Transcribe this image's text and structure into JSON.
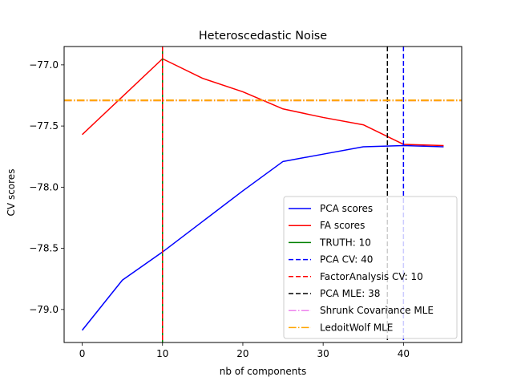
{
  "chart_data": {
    "type": "line",
    "title": "Heteroscedastic Noise",
    "xlabel": "nb of components",
    "ylabel": "CV scores",
    "xlim": [
      -2.25,
      47.25
    ],
    "ylim": [
      -79.27,
      -76.85
    ],
    "xticks": [
      0,
      10,
      20,
      30,
      40
    ],
    "xtick_labels": [
      "0",
      "10",
      "20",
      "30",
      "40"
    ],
    "yticks": [
      -79.0,
      -78.5,
      -78.0,
      -77.5,
      -77.0
    ],
    "ytick_labels": [
      "−79.0",
      "−78.5",
      "−78.0",
      "−77.5",
      "−77.0"
    ],
    "grid": false,
    "legend_position": "lower-right",
    "series": [
      {
        "name": "PCA scores",
        "color": "#0000ff",
        "style": "solid",
        "x": [
          0,
          5,
          10,
          15,
          20,
          25,
          30,
          35,
          40,
          45
        ],
        "y": [
          -79.17,
          -78.76,
          -78.53,
          -78.28,
          -78.03,
          -77.79,
          -77.73,
          -77.67,
          -77.66,
          -77.67
        ]
      },
      {
        "name": "FA scores",
        "color": "#ff0000",
        "style": "solid",
        "x": [
          0,
          5,
          10,
          15,
          20,
          25,
          30,
          35,
          40,
          45
        ],
        "y": [
          -77.57,
          -77.26,
          -76.95,
          -77.11,
          -77.22,
          -77.36,
          -77.43,
          -77.49,
          -77.65,
          -77.66
        ]
      }
    ],
    "vlines": [
      {
        "name": "TRUTH: 10",
        "x": 10,
        "color": "#008000",
        "style": "solid"
      },
      {
        "name": "PCA CV: 40",
        "x": 40,
        "color": "#0000ff",
        "style": "dashed"
      },
      {
        "name": "FactorAnalysis CV: 10",
        "x": 10,
        "color": "#ff0000",
        "style": "dashed"
      },
      {
        "name": "PCA MLE: 38",
        "x": 38,
        "color": "#000000",
        "style": "dashed"
      }
    ],
    "hlines": [
      {
        "name": "Shrunk Covariance MLE",
        "y": -77.29,
        "color": "#ee82ee",
        "style": "dashdot"
      },
      {
        "name": "LedoitWolf MLE",
        "y": -77.29,
        "color": "#ffa500",
        "style": "dashdot"
      }
    ],
    "legend": [
      {
        "label": "PCA scores",
        "color": "#0000ff",
        "style": "solid"
      },
      {
        "label": "FA scores",
        "color": "#ff0000",
        "style": "solid"
      },
      {
        "label": "TRUTH: 10",
        "color": "#008000",
        "style": "solid"
      },
      {
        "label": "PCA CV: 40",
        "color": "#0000ff",
        "style": "dashed"
      },
      {
        "label": "FactorAnalysis CV: 10",
        "color": "#ff0000",
        "style": "dashed"
      },
      {
        "label": "PCA MLE: 38",
        "color": "#000000",
        "style": "dashed"
      },
      {
        "label": "Shrunk Covariance MLE",
        "color": "#ee82ee",
        "style": "dashdot"
      },
      {
        "label": "LedoitWolf MLE",
        "color": "#ffa500",
        "style": "dashdot"
      }
    ]
  }
}
